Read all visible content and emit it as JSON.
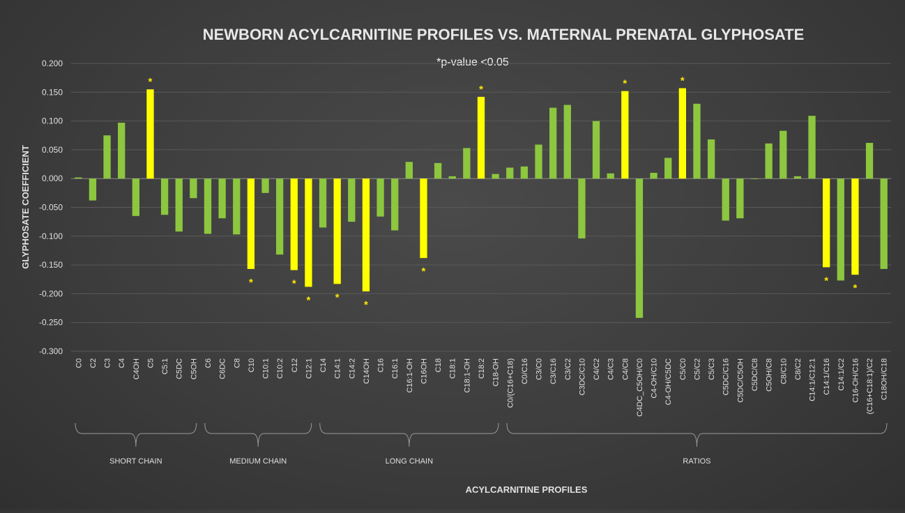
{
  "chart_data": {
    "type": "bar",
    "title": "NEWBORN ACYLCARNITINE PROFILES VS. MATERNAL PRENATAL GLYPHOSATE",
    "subtitle": "*p-value <0.05",
    "xlabel": "ACYLCARNITINE PROFILES",
    "ylabel": "GLYPHOSATE COEFFICIENT",
    "ylim": [
      -0.3,
      0.2
    ],
    "ytick_step": 0.05,
    "ytick_labels": [
      "0.200",
      "0.150",
      "0.100",
      "0.050",
      "0.000",
      "-0.050",
      "-0.100",
      "-0.150",
      "-0.200",
      "-0.250",
      "-0.300"
    ],
    "grid": true,
    "significance_marker": "*",
    "colors": {
      "normal": "#8dc63f",
      "significant": "#ffff00",
      "marker": "#ffe600"
    },
    "categories": [
      "C0",
      "C2",
      "C3",
      "C4",
      "C4OH",
      "C5",
      "C5:1",
      "C5DC",
      "C5OH",
      "C6",
      "C6DC",
      "C8",
      "C10",
      "C10:1",
      "C10:2",
      "C12",
      "C12:1",
      "C14",
      "C14:1",
      "C14:2",
      "C14OH",
      "C16",
      "C16:1",
      "C16:1-OH",
      "C16OH",
      "C18",
      "C18:1",
      "C18:1-OH",
      "C18:2",
      "C18-OH",
      "C0/(C16+C18)",
      "C0/C16",
      "C3/C0",
      "C3/C16",
      "C3/C2",
      "C3DC/C10",
      "C4/C2",
      "C4/C3",
      "C4/C8",
      "C4DC_C5OH/C0",
      "C4-OH/C10",
      "C4-OH/C5DC",
      "C5/C0",
      "C5/C2",
      "C5/C3",
      "C5DC/C16",
      "C5DC/C5OH",
      "C5DC/C8",
      "C5OH/C8",
      "C8/C10",
      "C8/C2",
      "C14:1/C12:1",
      "C14:1/C16",
      "C14:1/C2",
      "C16-OH/C16",
      "(C16+C18:1)/C2",
      "C18OH/C18"
    ],
    "values": [
      0.002,
      -0.038,
      0.075,
      0.097,
      -0.065,
      0.155,
      -0.063,
      -0.092,
      -0.034,
      -0.096,
      -0.069,
      -0.097,
      -0.157,
      -0.025,
      -0.132,
      -0.159,
      -0.188,
      -0.085,
      -0.183,
      -0.075,
      -0.196,
      -0.066,
      -0.09,
      0.029,
      -0.138,
      0.027,
      0.004,
      0.053,
      0.142,
      0.008,
      0.019,
      0.021,
      0.059,
      0.123,
      0.128,
      -0.104,
      0.1,
      0.009,
      0.152,
      -0.242,
      0.01,
      0.036,
      0.157,
      0.13,
      0.068,
      -0.073,
      -0.069,
      -0.001,
      0.061,
      0.083,
      0.004,
      0.109,
      -0.154,
      -0.177,
      -0.167,
      0.062,
      -0.157
    ],
    "significant": [
      false,
      false,
      false,
      false,
      false,
      true,
      false,
      false,
      false,
      false,
      false,
      false,
      true,
      false,
      false,
      true,
      true,
      false,
      true,
      false,
      true,
      false,
      false,
      false,
      true,
      false,
      false,
      false,
      true,
      false,
      false,
      false,
      false,
      false,
      false,
      false,
      false,
      false,
      true,
      false,
      false,
      false,
      true,
      false,
      false,
      false,
      false,
      false,
      false,
      false,
      false,
      false,
      true,
      false,
      true,
      false,
      false
    ],
    "groups": [
      {
        "label": "SHORT CHAIN",
        "start": 0,
        "end": 8
      },
      {
        "label": "MEDIUM CHAIN",
        "start": 9,
        "end": 16
      },
      {
        "label": "LONG CHAIN",
        "start": 17,
        "end": 29
      },
      {
        "label": "RATIOS",
        "start": 30,
        "end": 56
      }
    ]
  }
}
